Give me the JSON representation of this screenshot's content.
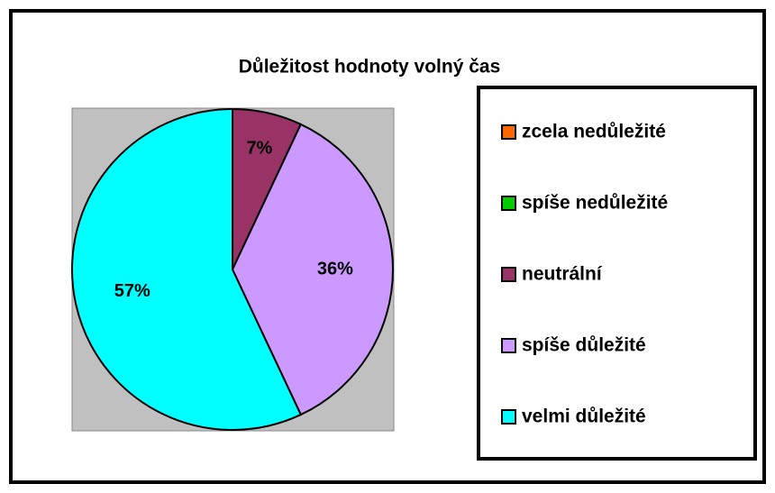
{
  "chart_data": {
    "type": "pie",
    "title": "Důležitost hodnoty volný čas",
    "categories": [
      "zcela nedůležité",
      "spíše nedůležité",
      "neutrální",
      "spíše důležité",
      "velmi důležité"
    ],
    "values": [
      0,
      0,
      7,
      36,
      57
    ],
    "value_labels": [
      null,
      null,
      "7%",
      "36%",
      "57%"
    ],
    "colors": [
      "#ff6600",
      "#00cc00",
      "#993366",
      "#cc99ff",
      "#00ffff"
    ],
    "legend": "right"
  }
}
